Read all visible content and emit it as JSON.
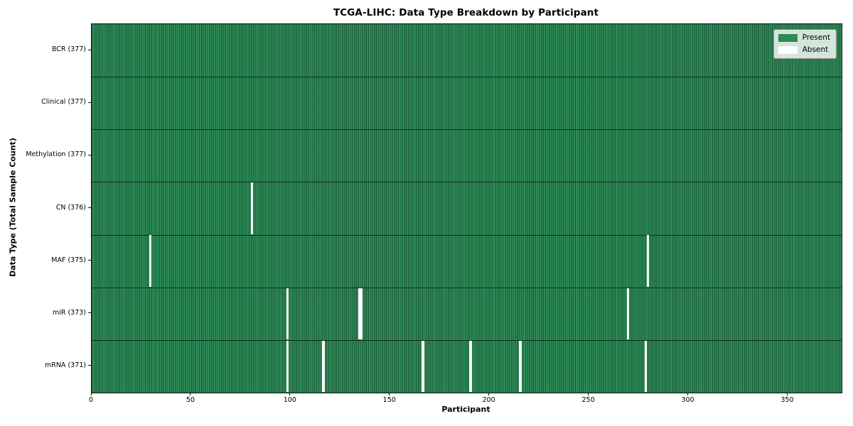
{
  "figure": {
    "title": "TCGA-LIHC: Data Type Breakdown by Participant",
    "xlabel": "Participant",
    "ylabel": "Data Type (Total Sample Count)"
  },
  "legend": {
    "items": [
      {
        "label": "Present",
        "color": "#2e8b57"
      },
      {
        "label": "Absent",
        "color": "#ffffff"
      }
    ]
  },
  "chart_data": {
    "type": "heatmap",
    "title": "TCGA-LIHC: Data Type Breakdown by Participant",
    "xlabel": "Participant",
    "ylabel": "Data Type (Total Sample Count)",
    "x_ticks": [
      0,
      50,
      100,
      150,
      200,
      250,
      300,
      350
    ],
    "xlim": [
      0,
      377
    ],
    "n_participants": 377,
    "grid": false,
    "legend_position": "upper right",
    "colors": {
      "present": "#2e8b57",
      "absent": "#ffffff",
      "cell_edge": "rgba(8,40,24,0.5)",
      "row_separator": "rgba(0,0,0,0.62)"
    },
    "rows": [
      {
        "label": "BCR (377)",
        "data_type": "BCR",
        "present_count": 377,
        "absent_participant_indices": []
      },
      {
        "label": "Clinical (377)",
        "data_type": "Clinical",
        "present_count": 377,
        "absent_participant_indices": []
      },
      {
        "label": "Methylation (377)",
        "data_type": "Methylation",
        "present_count": 377,
        "absent_participant_indices": []
      },
      {
        "label": "CN (376)",
        "data_type": "CN",
        "present_count": 376,
        "absent_participant_indices": [
          80
        ]
      },
      {
        "label": "MAF (375)",
        "data_type": "MAF",
        "present_count": 375,
        "absent_participant_indices": [
          29,
          279
        ]
      },
      {
        "label": "miR (373)",
        "data_type": "miR",
        "present_count": 373,
        "absent_participant_indices": [
          98,
          134,
          135,
          269
        ]
      },
      {
        "label": "mRNA (371)",
        "data_type": "mRNA",
        "present_count": 371,
        "absent_participant_indices": [
          98,
          116,
          166,
          190,
          215,
          278
        ]
      }
    ]
  }
}
